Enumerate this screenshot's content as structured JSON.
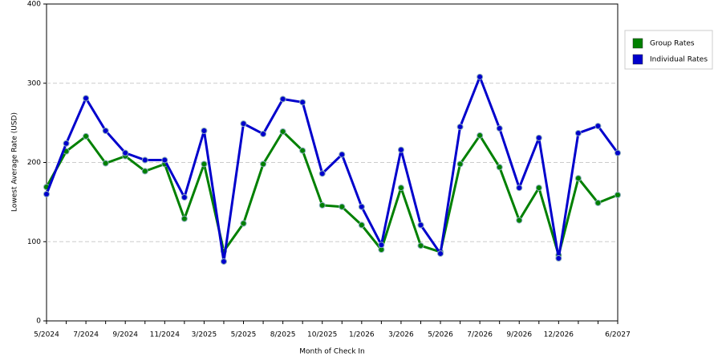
{
  "chart_data": {
    "type": "line",
    "x_label": "Month of Check In",
    "y_label": "Lowest Average Rate (USD)",
    "categories": [
      "5/2024",
      null,
      "7/2024",
      null,
      "9/2024",
      null,
      "11/2024",
      null,
      "3/2025",
      null,
      "5/2025",
      null,
      "8/2025",
      null,
      "10/2025",
      null,
      "1/2026",
      null,
      "3/2026",
      null,
      "5/2026",
      null,
      "7/2026",
      null,
      "9/2026",
      null,
      "12/2026",
      null,
      null,
      "6/2027"
    ],
    "series": [
      {
        "name": "Group Rates",
        "color": "#008000",
        "values": [
          169,
          214,
          233,
          199,
          208,
          189,
          198,
          129,
          198,
          88,
          123,
          198,
          239,
          215,
          146,
          144,
          121,
          90,
          168,
          95,
          87,
          198,
          234,
          194,
          127,
          168,
          83,
          180,
          149,
          159
        ]
      },
      {
        "name": "Individual Rates",
        "color": "#0000cc",
        "values": [
          160,
          224,
          281,
          240,
          212,
          203,
          203,
          156,
          240,
          75,
          249,
          236,
          280,
          276,
          186,
          210,
          144,
          96,
          216,
          121,
          85,
          245,
          308,
          243,
          168,
          231,
          79,
          237,
          246,
          212
        ]
      }
    ],
    "ylim": [
      0,
      400
    ],
    "yticks": [
      0,
      100,
      200,
      300,
      400
    ],
    "grid": true,
    "legend": "right"
  }
}
